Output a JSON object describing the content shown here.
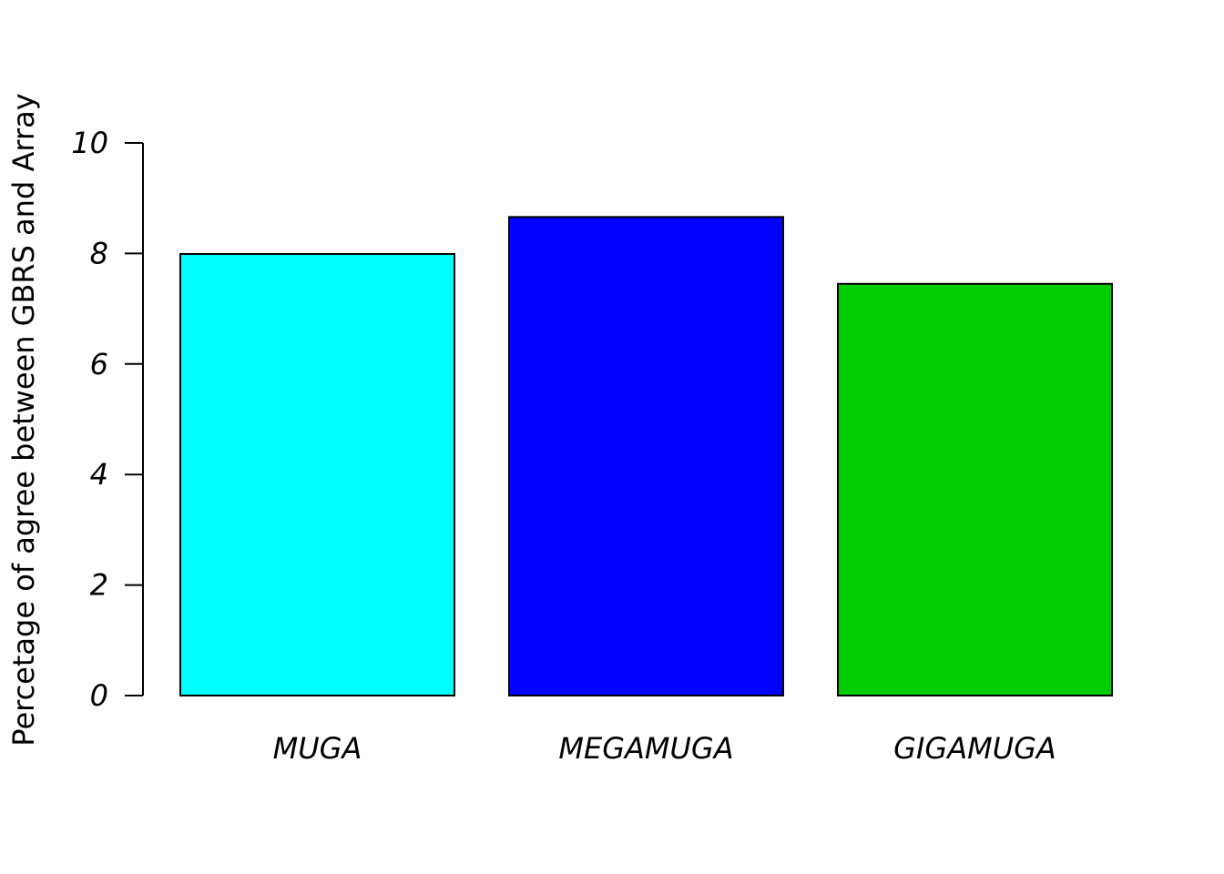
{
  "chart_data": {
    "type": "bar",
    "title": "",
    "xlabel": "",
    "ylabel": "Percetage of agree between GBRS and Array",
    "categories": [
      "MUGA",
      "MEGAMUGA",
      "GIGAMUGA"
    ],
    "values": [
      7.99,
      8.66,
      7.45
    ],
    "colors": [
      "#00FFFF",
      "#0000FF",
      "#00CD00"
    ],
    "ylim": [
      0,
      10
    ],
    "yticks": [
      0,
      2,
      4,
      6,
      8,
      10
    ],
    "grid": false,
    "legend": "none"
  }
}
